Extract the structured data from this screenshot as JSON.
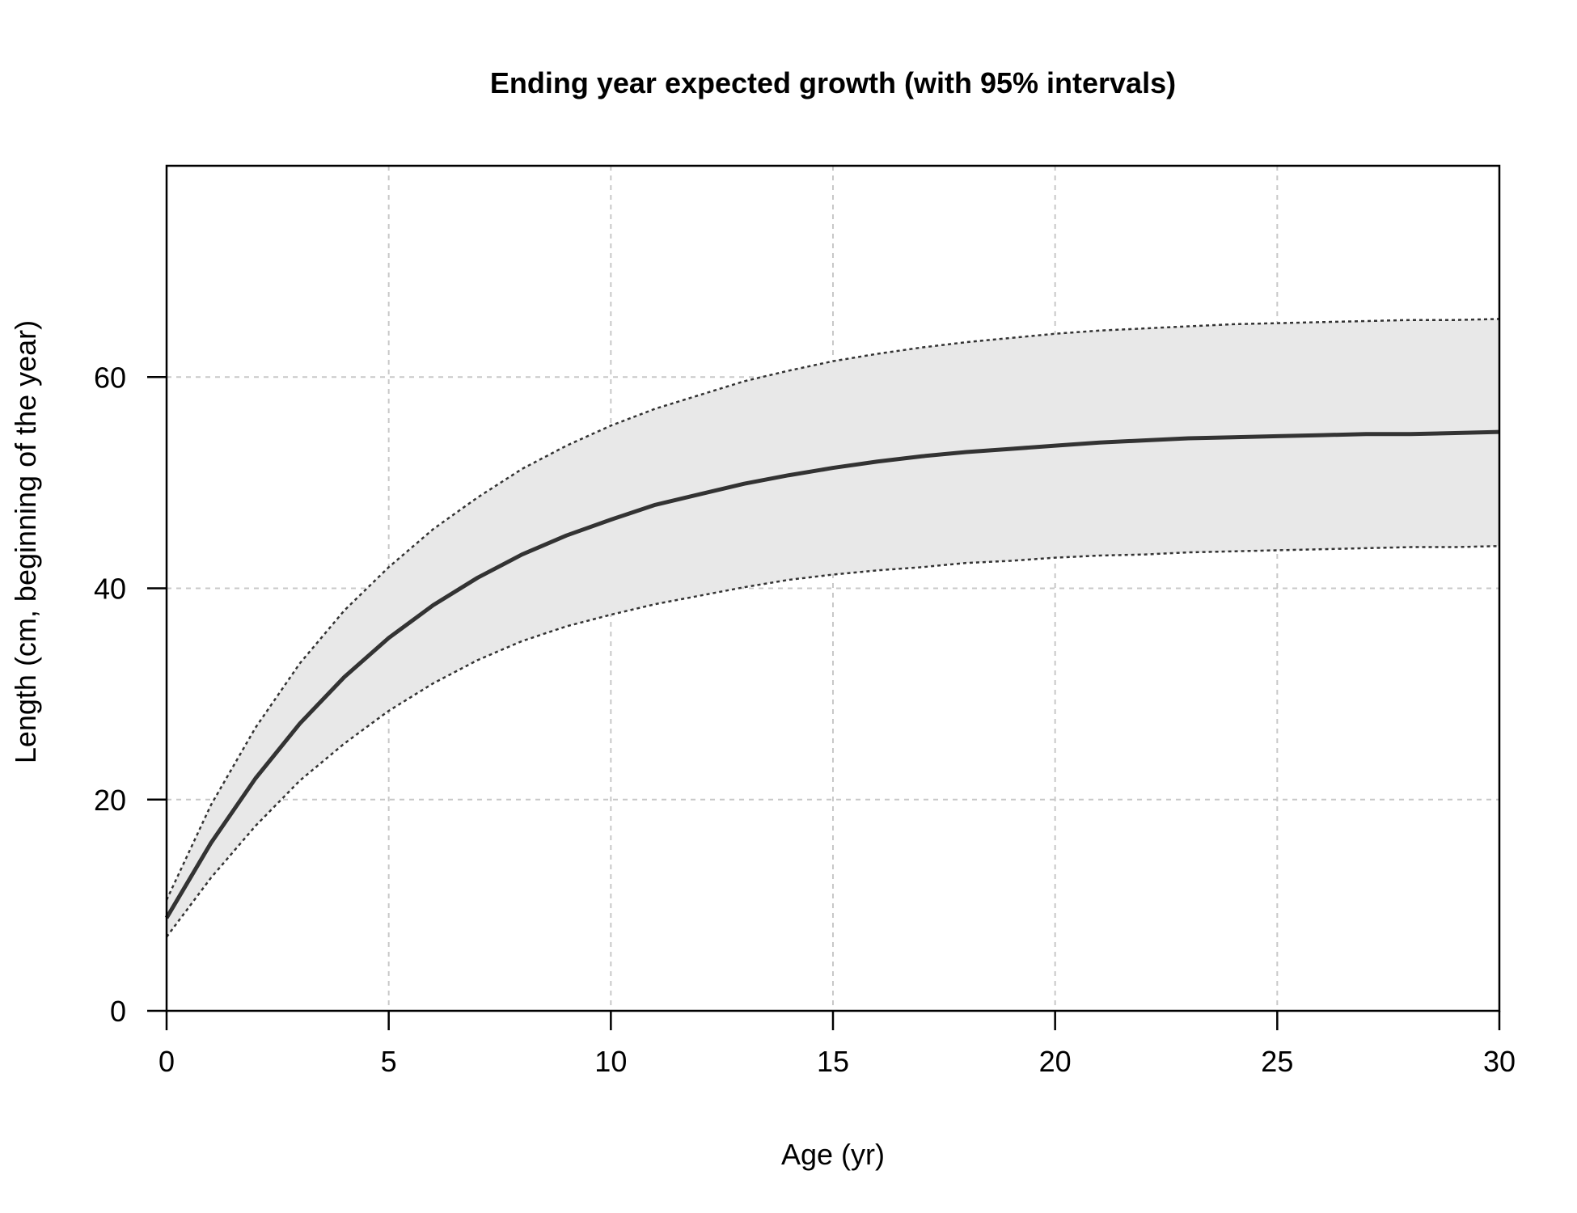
{
  "chart_data": {
    "type": "line",
    "title": "Ending year expected growth (with 95% intervals)",
    "xlabel": "Age (yr)",
    "ylabel": "Length (cm, beginning of the year)",
    "xlim": [
      0,
      30
    ],
    "ylim": [
      0,
      80
    ],
    "xticks": [
      0,
      5,
      10,
      15,
      20,
      25,
      30
    ],
    "yticks": [
      0,
      20,
      40,
      60
    ],
    "grid": true,
    "x": [
      0,
      1,
      2,
      3,
      4,
      5,
      6,
      7,
      8,
      9,
      10,
      11,
      12,
      13,
      14,
      15,
      16,
      17,
      18,
      19,
      20,
      21,
      22,
      23,
      24,
      25,
      26,
      27,
      28,
      29,
      30
    ],
    "series": [
      {
        "role": "upper-bound",
        "style": "dotted",
        "values": [
          10.5,
          19.5,
          26.8,
          32.9,
          37.9,
          42.0,
          45.6,
          48.6,
          51.3,
          53.5,
          55.4,
          57.0,
          58.3,
          59.6,
          60.6,
          61.5,
          62.2,
          62.8,
          63.3,
          63.7,
          64.1,
          64.4,
          64.6,
          64.8,
          65.0,
          65.1,
          65.2,
          65.3,
          65.4,
          65.4,
          65.5
        ]
      },
      {
        "role": "expected",
        "style": "solid",
        "values": [
          8.8,
          15.9,
          22.0,
          27.2,
          31.6,
          35.3,
          38.4,
          41.0,
          43.2,
          45.0,
          46.5,
          47.9,
          48.9,
          49.9,
          50.7,
          51.4,
          52.0,
          52.5,
          52.9,
          53.2,
          53.5,
          53.8,
          54.0,
          54.2,
          54.3,
          54.4,
          54.5,
          54.6,
          54.6,
          54.7,
          54.8
        ]
      },
      {
        "role": "lower-bound",
        "style": "dotted",
        "values": [
          7.0,
          12.6,
          17.5,
          21.8,
          25.3,
          28.4,
          31.0,
          33.2,
          35.0,
          36.4,
          37.5,
          38.5,
          39.3,
          40.1,
          40.8,
          41.3,
          41.7,
          42.0,
          42.4,
          42.6,
          42.9,
          43.1,
          43.2,
          43.4,
          43.5,
          43.6,
          43.7,
          43.8,
          43.9,
          43.9,
          44.0
        ]
      }
    ],
    "band_color": "#e8e8e8",
    "line_color": "#333333"
  }
}
